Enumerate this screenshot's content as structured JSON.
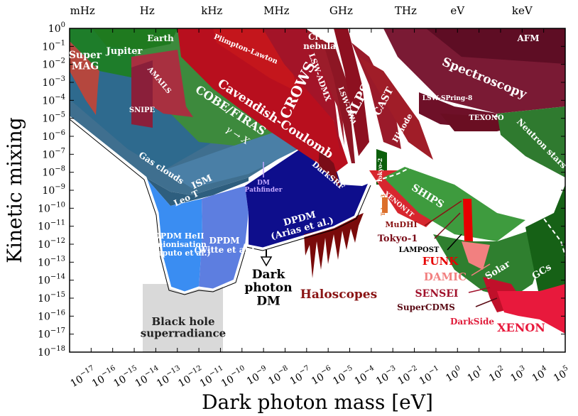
{
  "chart_data": {
    "type": "area",
    "title": "",
    "xlabel": "Dark photon mass [eV]",
    "ylabel": "Kinetic mixing",
    "x_scale": "log",
    "y_scale": "log",
    "xlim_exp": [
      -18,
      5
    ],
    "ylim_exp": [
      -18,
      0
    ],
    "x_tick_exponents": [
      -17,
      -16,
      -15,
      -14,
      -13,
      -12,
      -11,
      -10,
      -9,
      -8,
      -7,
      -6,
      -5,
      -4,
      -3,
      -2,
      -1,
      0,
      1,
      2,
      3,
      4,
      5
    ],
    "y_tick_exponents": [
      0,
      -1,
      -2,
      -3,
      -4,
      -5,
      -6,
      -7,
      -8,
      -9,
      -10,
      -11,
      -12,
      -13,
      -14,
      -15,
      -16,
      -17,
      -18
    ],
    "tick_base": "10",
    "top_axis": {
      "labels": [
        "mHz",
        "Hz",
        "kHz",
        "MHz",
        "GHz",
        "THz",
        "eV",
        "keV"
      ],
      "mass_exp": [
        -17.4,
        -14.4,
        -11.4,
        -8.4,
        -5.4,
        -2.4,
        0,
        3
      ]
    },
    "regions": [
      {
        "name": "Black hole superradiance",
        "label": "Black hole\nsuperradiance",
        "color": "#d9d9d9",
        "x": [
          -13.8,
          -10.9
        ],
        "y": [
          -18,
          -13
        ]
      },
      {
        "name": "Earth",
        "label": "Earth",
        "color": "#1f7a1f",
        "x": [
          -14.2,
          -11.8
        ],
        "y": [
          -1,
          0
        ]
      },
      {
        "name": "Jupiter",
        "label": "Jupiter",
        "color": "#1e7d2a",
        "x": [
          -16.2,
          -14
        ],
        "y": [
          -3,
          0
        ]
      },
      {
        "name": "SuperMAG",
        "label": "Super\nMAG",
        "color": "#b5473e",
        "x": [
          -17.6,
          -16
        ],
        "y": [
          -5,
          -1
        ]
      },
      {
        "name": "AMAILS",
        "label": "AMAILS",
        "color": "#a83040",
        "x": [
          -14.5,
          -12.8
        ],
        "y": [
          -5,
          -2
        ]
      },
      {
        "name": "SNIPE",
        "label": "SNIPE",
        "color": "#8a1f3a",
        "x": [
          -14.5,
          -13.8
        ],
        "y": [
          -6,
          -3
        ]
      },
      {
        "name": "Plimpton-Lawton",
        "label": "Plimpton-Lawton",
        "color": "#c4161c",
        "x": [
          -12,
          -9
        ],
        "y": [
          -4,
          0
        ]
      },
      {
        "name": "Cavendish-Coulomb",
        "label": "Cavendish-Coulomb",
        "color": "#b80f1e",
        "x": [
          -11,
          -6
        ],
        "y": [
          -8,
          0
        ]
      },
      {
        "name": "COBE/FIRAS",
        "label": "COBE/FIRAS",
        "sub": "γ → X",
        "color": "#3d8a3d",
        "x": [
          -15,
          -8
        ],
        "y": [
          -9,
          -3
        ]
      },
      {
        "name": "Gas clouds",
        "label": "Gas clouds",
        "color": "#3f6f8f",
        "x": [
          -17.6,
          -12
        ],
        "y": [
          -10,
          -5
        ]
      },
      {
        "name": "ISM",
        "label": "ISM",
        "color": "#4a7fa6",
        "x": [
          -13,
          -9
        ],
        "y": [
          -10,
          -7
        ]
      },
      {
        "name": "Leo T",
        "label": "Leo T",
        "color": "#2e5e7e",
        "x": [
          -13.5,
          -11
        ],
        "y": [
          -10,
          -8
        ]
      },
      {
        "name": "DPDM HeII Reionisation",
        "label": "DPDM HeII\nReionisation\n(Caputo et al.)",
        "color": "#3a8df2",
        "x": [
          -14,
          -12
        ],
        "y": [
          -15,
          -9
        ]
      },
      {
        "name": "DPDM Witte",
        "label": "DPDM\n(Witte et al.)",
        "color": "#5d7ee0",
        "x": [
          -12,
          -10.5
        ],
        "y": [
          -15,
          -10
        ]
      },
      {
        "name": "DPDM Arias",
        "label": "DPDM\n(Arias et al.)",
        "color": "#0e0e8c",
        "x": [
          -10.5,
          -4
        ],
        "y": [
          -13,
          -7
        ]
      },
      {
        "name": "DM Pathfinder",
        "label": "DM\nPathfinder",
        "color": "#c3a8ff",
        "x": [
          -9.2,
          -9
        ],
        "y": [
          -9,
          -8
        ]
      },
      {
        "name": "Haloscopes",
        "label": "Haloscopes",
        "color": "#7a0a0a",
        "x": [
          -7,
          -4
        ],
        "y": [
          -16,
          -12
        ]
      },
      {
        "name": "Crab nebula",
        "label": "Crab\nnebula",
        "color": "#2e6b2e",
        "x": [
          -7.5,
          -5
        ],
        "y": [
          -1,
          0
        ]
      },
      {
        "name": "LSW-ADMX",
        "label": "LSW-ADMX",
        "color": "#9b1c2a",
        "x": [
          -7.5,
          -5.5
        ],
        "y": [
          -7,
          0
        ]
      },
      {
        "name": "CROWS",
        "label": "CROWS",
        "color": "#a31428",
        "x": [
          -8,
          -6
        ],
        "y": [
          -7,
          0
        ]
      },
      {
        "name": "LSW-UWA",
        "label": "LSW-UWA",
        "color": "#8d1624",
        "x": [
          -6,
          -4
        ],
        "y": [
          -8,
          0
        ]
      },
      {
        "name": "ALPS",
        "label": "ALPS",
        "color": "#8d1020",
        "x": [
          -5,
          -3
        ],
        "y": [
          -8,
          0
        ]
      },
      {
        "name": "CAST",
        "label": "CAST",
        "color": "#9a1a2a",
        "x": [
          -4,
          -2
        ],
        "y": [
          -8,
          -2
        ]
      },
      {
        "name": "Hinode",
        "label": "Hinode",
        "color": "#a01d28",
        "x": [
          -3.5,
          -1
        ],
        "y": [
          -8,
          -3
        ]
      },
      {
        "name": "DarkSRF",
        "label": "DarkSRF",
        "color": "#7a0c18",
        "x": [
          -6.5,
          -5
        ],
        "y": [
          -9,
          -7
        ]
      },
      {
        "name": "Tokyo-2",
        "label": "Tokyo-2",
        "color": "#0b5e0b",
        "x": [
          -4,
          -3.2
        ],
        "y": [
          -9,
          -6
        ]
      },
      {
        "name": "Tokyo-3",
        "label": "Tokyo-3",
        "color": "#dc6f2a",
        "x": [
          -3.4,
          -2.8
        ],
        "y": [
          -11,
          -9
        ]
      },
      {
        "name": "XENON1T",
        "label": "XENON1T",
        "color": "#d7262e",
        "x": [
          -3.2,
          0
        ],
        "y": [
          -10,
          -8
        ]
      },
      {
        "name": "SHIPS",
        "label": "SHIPS",
        "color": "#3e9b3e",
        "x": [
          -2.5,
          0.5
        ],
        "y": [
          -10,
          -8
        ]
      },
      {
        "name": "LSW-SPring-8",
        "label": "LSW-SPring-8",
        "color": "#7a1228",
        "x": [
          -1,
          2
        ],
        "y": [
          -4,
          -2
        ]
      },
      {
        "name": "Spectroscopy",
        "label": "Spectroscopy",
        "color": "#7a1a34",
        "x": [
          -2,
          4
        ],
        "y": [
          -4,
          -1
        ]
      },
      {
        "name": "AFM",
        "label": "AFM",
        "color": "#5e0d24",
        "x": [
          1,
          4.5
        ],
        "y": [
          -1,
          0
        ]
      },
      {
        "name": "TEXONO",
        "label": "TEXONO",
        "color": "#6a0e22",
        "x": [
          0,
          2.5
        ],
        "y": [
          -6,
          -4
        ]
      },
      {
        "name": "Neutron stars",
        "label": "Neutron stars",
        "color": "#2f7a2f",
        "x": [
          2,
          5
        ],
        "y": [
          -8,
          -5
        ]
      },
      {
        "name": "MuDHI",
        "label": "MuDHI",
        "color": "#c0392b",
        "x": [
          -2,
          0.5
        ],
        "y": [
          -12,
          -10
        ]
      },
      {
        "name": "Tokyo-1",
        "label": "Tokyo-1",
        "color": "#7a0c18",
        "x": [
          -1.2,
          0.5
        ],
        "y": [
          -13,
          -11
        ]
      },
      {
        "name": "LAMPOST",
        "label": "LAMPOST",
        "color": "#7a0c18",
        "x": [
          -0.5,
          0.3
        ],
        "y": [
          -13,
          -12
        ]
      },
      {
        "name": "FUNK",
        "label": "FUNK",
        "color": "#e60000",
        "x": [
          0,
          0.8
        ],
        "y": [
          -13,
          -11
        ]
      },
      {
        "name": "DAMIC",
        "label": "DAMIC",
        "color": "#f28080",
        "x": [
          0.5,
          1.5
        ],
        "y": [
          -14,
          -12
        ]
      },
      {
        "name": "Solar",
        "label": "Solar",
        "color": "#2f7f2f",
        "x": [
          0,
          3
        ],
        "y": [
          -15,
          -10
        ]
      },
      {
        "name": "GCs",
        "label": "GCs",
        "color": "#166116",
        "x": [
          2,
          3.5
        ],
        "y": [
          -15,
          -11
        ]
      },
      {
        "name": "SENSEI",
        "label": "SENSEI",
        "color": "#c0102a",
        "x": [
          0,
          1
        ],
        "y": [
          -16,
          -14
        ]
      },
      {
        "name": "SuperCDMS",
        "label": "SuperCDMS",
        "color": "#8d0a1a",
        "x": [
          0.5,
          2
        ],
        "y": [
          -16,
          -15
        ]
      },
      {
        "name": "DarkSide",
        "label": "DarkSide",
        "color": "#e01e3c",
        "x": [
          1,
          1.5
        ],
        "y": [
          -16,
          -15
        ]
      },
      {
        "name": "XENON",
        "label": "XENON",
        "color": "#e8193c",
        "x": [
          1.5,
          5
        ],
        "y": [
          -17,
          -14
        ]
      },
      {
        "name": "Dark photon DM",
        "label": "Dark\nphoton\nDM",
        "color": "#111111",
        "x": [
          -9.5,
          -8.5
        ],
        "y": [
          -14,
          -12
        ]
      }
    ]
  }
}
